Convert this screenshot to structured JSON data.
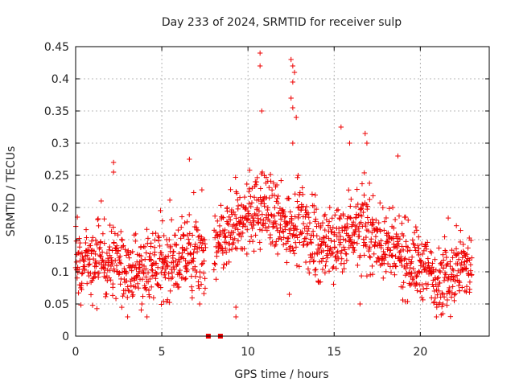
{
  "chart_data": {
    "type": "scatter",
    "title": "Day 233 of 2024, SRMTID for receiver sulp",
    "xlabel": "GPS time / hours",
    "ylabel": "SRMTID / TECUs",
    "xlim": [
      0,
      24
    ],
    "ylim": [
      0,
      0.45
    ],
    "xticks": [
      "0",
      "5",
      "10",
      "15",
      "20"
    ],
    "xtick_values": [
      0,
      5,
      10,
      15,
      20
    ],
    "yticks": [
      "0",
      "0.05",
      "0.1",
      "0.15",
      "0.2",
      "0.25",
      "0.3",
      "0.35",
      "0.4",
      "0.45"
    ],
    "ytick_values": [
      0,
      0.05,
      0.1,
      0.15,
      0.2,
      0.25,
      0.3,
      0.35,
      0.4,
      0.45
    ],
    "grid": true,
    "marker": "plus",
    "color": "#ee0000",
    "coverage_hours": [
      0,
      23
    ],
    "trend": [
      {
        "x": 0.0,
        "y": 0.12
      },
      {
        "x": 1.0,
        "y": 0.11
      },
      {
        "x": 2.0,
        "y": 0.12
      },
      {
        "x": 3.0,
        "y": 0.1
      },
      {
        "x": 4.0,
        "y": 0.1
      },
      {
        "x": 5.0,
        "y": 0.11
      },
      {
        "x": 6.0,
        "y": 0.12
      },
      {
        "x": 7.0,
        "y": 0.12
      },
      {
        "x": 8.0,
        "y": 0.13
      },
      {
        "x": 9.0,
        "y": 0.16
      },
      {
        "x": 10.0,
        "y": 0.19
      },
      {
        "x": 11.0,
        "y": 0.2
      },
      {
        "x": 12.0,
        "y": 0.17
      },
      {
        "x": 13.0,
        "y": 0.18
      },
      {
        "x": 14.0,
        "y": 0.14
      },
      {
        "x": 15.0,
        "y": 0.14
      },
      {
        "x": 16.0,
        "y": 0.17
      },
      {
        "x": 17.0,
        "y": 0.16
      },
      {
        "x": 18.0,
        "y": 0.14
      },
      {
        "x": 19.0,
        "y": 0.12
      },
      {
        "x": 20.0,
        "y": 0.11
      },
      {
        "x": 21.0,
        "y": 0.09
      },
      {
        "x": 22.0,
        "y": 0.1
      },
      {
        "x": 23.0,
        "y": 0.11
      }
    ],
    "spread": 0.035,
    "notable_points": [
      {
        "x": 0.1,
        "y": 0.185
      },
      {
        "x": 2.2,
        "y": 0.27
      },
      {
        "x": 2.2,
        "y": 0.255
      },
      {
        "x": 6.6,
        "y": 0.275
      },
      {
        "x": 9.3,
        "y": 0.03
      },
      {
        "x": 9.3,
        "y": 0.045
      },
      {
        "x": 10.7,
        "y": 0.44
      },
      {
        "x": 10.7,
        "y": 0.42
      },
      {
        "x": 10.8,
        "y": 0.35
      },
      {
        "x": 12.5,
        "y": 0.43
      },
      {
        "x": 12.6,
        "y": 0.42
      },
      {
        "x": 12.7,
        "y": 0.41
      },
      {
        "x": 12.6,
        "y": 0.395
      },
      {
        "x": 12.5,
        "y": 0.37
      },
      {
        "x": 12.6,
        "y": 0.355
      },
      {
        "x": 12.8,
        "y": 0.34
      },
      {
        "x": 12.6,
        "y": 0.3
      },
      {
        "x": 12.4,
        "y": 0.065
      },
      {
        "x": 15.4,
        "y": 0.325
      },
      {
        "x": 15.9,
        "y": 0.3
      },
      {
        "x": 16.8,
        "y": 0.315
      },
      {
        "x": 16.9,
        "y": 0.3
      },
      {
        "x": 18.7,
        "y": 0.28
      },
      {
        "x": 21.3,
        "y": 0.035
      },
      {
        "x": 16.5,
        "y": 0.05
      },
      {
        "x": 7.2,
        "y": 0.05
      }
    ],
    "zero_markers": [
      {
        "x": 7.7,
        "y": 0
      },
      {
        "x": 8.4,
        "y": 0
      }
    ]
  }
}
